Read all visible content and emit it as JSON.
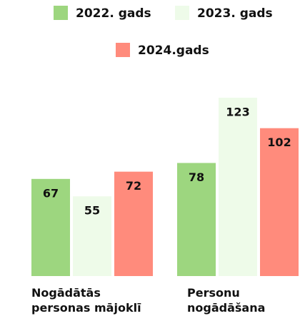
{
  "chart_data": {
    "type": "bar",
    "categories": [
      "Nogādātās personas mājoklī",
      "Personu nogādāšana"
    ],
    "series": [
      {
        "name": "2022. gads",
        "color": "#9dd67f",
        "values": [
          67,
          78
        ]
      },
      {
        "name": "2023. gads",
        "color": "#eefbe9",
        "values": [
          55,
          123
        ]
      },
      {
        "name": "2024.gads",
        "color": "#ff8b7c",
        "values": [
          72,
          102
        ]
      }
    ]
  }
}
